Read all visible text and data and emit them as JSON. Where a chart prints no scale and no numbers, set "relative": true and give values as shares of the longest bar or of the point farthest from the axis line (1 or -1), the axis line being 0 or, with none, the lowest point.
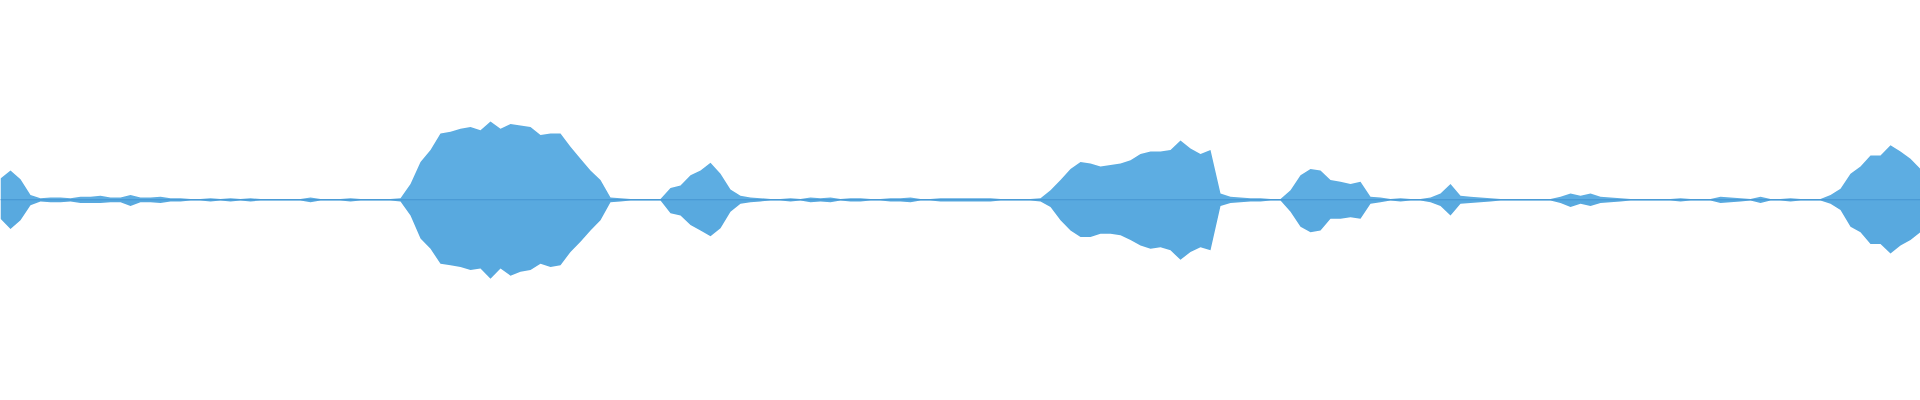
{
  "chart_data": {
    "type": "area",
    "relative": true,
    "tick_labels": false,
    "ref_lines": [
      {
        "axis": "y",
        "value": 0,
        "color": "#4b9bd5"
      }
    ],
    "categories": [
      null,
      null,
      null,
      null,
      null,
      null,
      null,
      null,
      null,
      null,
      null,
      null,
      null,
      null,
      null,
      null,
      null,
      null,
      null,
      null,
      null,
      null,
      null,
      null,
      null,
      null,
      null,
      null,
      null,
      null,
      null,
      null,
      null,
      null,
      null,
      null,
      null,
      null,
      null,
      null,
      null,
      null,
      null,
      null,
      null,
      null,
      null,
      null,
      null,
      null,
      null,
      null,
      null,
      null,
      null,
      null,
      null,
      null,
      null,
      null,
      null,
      null,
      null,
      null,
      null,
      null,
      null,
      null,
      null,
      null,
      null,
      null,
      null,
      null,
      null,
      null,
      null,
      null,
      null,
      null,
      null,
      null,
      null,
      null,
      null,
      null,
      null,
      null,
      null,
      null,
      null,
      null,
      null,
      null,
      null,
      null,
      null,
      null,
      null,
      null,
      null,
      null,
      null,
      null,
      null,
      null,
      null,
      null,
      null,
      null,
      null,
      null,
      null,
      null,
      null,
      null,
      null,
      null,
      null,
      null,
      null,
      null,
      null,
      null,
      null,
      null,
      null,
      null,
      null,
      null,
      null,
      null,
      null,
      null,
      null,
      null,
      null,
      null,
      null,
      null,
      null,
      null,
      null,
      null,
      null,
      null,
      null,
      null,
      null,
      null,
      null,
      null,
      null,
      null,
      null,
      null,
      null,
      null,
      null,
      null,
      null,
      null,
      null,
      null,
      null,
      null,
      null,
      null,
      null,
      null,
      null,
      null,
      null,
      null,
      null,
      null,
      null,
      null,
      null,
      null,
      null,
      null,
      null,
      null,
      null,
      null,
      null,
      null,
      null,
      null,
      null,
      null,
      null
    ],
    "series": [
      {
        "color": "#5dade2",
        "values": [
          0.27,
          0.37,
          0.26,
          0.06,
          0.02,
          0.03,
          0.03,
          0.02,
          0.04,
          0.04,
          0.05,
          0.03,
          0.03,
          0.06,
          0.03,
          0.03,
          0.04,
          0.02,
          0.02,
          0.01,
          0.01,
          0.02,
          0.01,
          0.02,
          0.01,
          0.02,
          0.01,
          0.01,
          0.01,
          0.01,
          0.01,
          0.03,
          0.01,
          0.01,
          0.01,
          0.02,
          0.01,
          0.01,
          0.01,
          0.01,
          0.02,
          0.2,
          0.48,
          0.63,
          0.84,
          0.86,
          0.9,
          0.92,
          0.88,
          0.99,
          0.9,
          0.96,
          0.94,
          0.92,
          0.82,
          0.84,
          0.84,
          0.67,
          0.52,
          0.37,
          0.25,
          0.03,
          0.02,
          0.01,
          0.01,
          0.01,
          0.01,
          0.15,
          0.18,
          0.31,
          0.37,
          0.47,
          0.33,
          0.13,
          0.05,
          0.03,
          0.02,
          0.01,
          0.01,
          0.02,
          0.01,
          0.03,
          0.02,
          0.03,
          0.01,
          0.02,
          0.02,
          0.01,
          0.01,
          0.02,
          0.02,
          0.03,
          0.01,
          0.01,
          0.02,
          0.02,
          0.02,
          0.02,
          0.02,
          0.02,
          0.01,
          0.01,
          0.01,
          0.01,
          0.02,
          0.12,
          0.25,
          0.39,
          0.48,
          0.46,
          0.42,
          0.44,
          0.46,
          0.5,
          0.58,
          0.61,
          0.61,
          0.63,
          0.75,
          0.65,
          0.58,
          0.63,
          0.08,
          0.04,
          0.03,
          0.02,
          0.02,
          0.01,
          0.01,
          0.12,
          0.31,
          0.39,
          0.37,
          0.25,
          0.23,
          0.2,
          0.23,
          0.04,
          0.03,
          0.01,
          0.02,
          0.01,
          0.01,
          0.03,
          0.08,
          0.2,
          0.05,
          0.04,
          0.03,
          0.02,
          0.01,
          0.01,
          0.01,
          0.01,
          0.01,
          0.01,
          0.04,
          0.08,
          0.05,
          0.08,
          0.04,
          0.03,
          0.02,
          0.01,
          0.01,
          0.01,
          0.01,
          0.01,
          0.02,
          0.01,
          0.01,
          0.01,
          0.04,
          0.03,
          0.02,
          0.01,
          0.04,
          0.01,
          0.01,
          0.02,
          0.01,
          0.01,
          0.01,
          0.06,
          0.14,
          0.33,
          0.42,
          0.56,
          0.56,
          0.69,
          0.61,
          0.52,
          0.39
        ]
      },
      {
        "color": "#58a9df",
        "values": [
          -0.24,
          -0.37,
          -0.26,
          -0.07,
          -0.02,
          -0.03,
          -0.03,
          -0.02,
          -0.04,
          -0.04,
          -0.04,
          -0.03,
          -0.03,
          -0.08,
          -0.03,
          -0.03,
          -0.04,
          -0.02,
          -0.02,
          -0.01,
          -0.01,
          -0.02,
          -0.01,
          -0.02,
          -0.01,
          -0.02,
          -0.01,
          -0.01,
          -0.01,
          -0.01,
          -0.01,
          -0.03,
          -0.01,
          -0.01,
          -0.01,
          -0.02,
          -0.01,
          -0.01,
          -0.01,
          -0.01,
          -0.02,
          -0.2,
          -0.49,
          -0.62,
          -0.81,
          -0.83,
          -0.85,
          -0.89,
          -0.87,
          -1.0,
          -0.87,
          -0.96,
          -0.91,
          -0.89,
          -0.81,
          -0.85,
          -0.83,
          -0.66,
          -0.53,
          -0.39,
          -0.26,
          -0.03,
          -0.02,
          -0.01,
          -0.01,
          -0.01,
          -0.01,
          -0.17,
          -0.2,
          -0.32,
          -0.39,
          -0.46,
          -0.36,
          -0.15,
          -0.05,
          -0.03,
          -0.02,
          -0.01,
          -0.01,
          -0.02,
          -0.01,
          -0.03,
          -0.02,
          -0.03,
          -0.01,
          -0.02,
          -0.02,
          -0.01,
          -0.01,
          -0.02,
          -0.02,
          -0.03,
          -0.01,
          -0.01,
          -0.02,
          -0.02,
          -0.02,
          -0.02,
          -0.02,
          -0.02,
          -0.01,
          -0.01,
          -0.01,
          -0.01,
          -0.02,
          -0.09,
          -0.26,
          -0.39,
          -0.47,
          -0.47,
          -0.43,
          -0.43,
          -0.45,
          -0.51,
          -0.58,
          -0.62,
          -0.6,
          -0.64,
          -0.76,
          -0.66,
          -0.6,
          -0.64,
          -0.08,
          -0.04,
          -0.03,
          -0.02,
          -0.02,
          -0.01,
          -0.01,
          -0.15,
          -0.34,
          -0.41,
          -0.39,
          -0.24,
          -0.24,
          -0.22,
          -0.24,
          -0.05,
          -0.03,
          -0.01,
          -0.02,
          -0.01,
          -0.01,
          -0.03,
          -0.08,
          -0.2,
          -0.05,
          -0.04,
          -0.03,
          -0.02,
          -0.01,
          -0.01,
          -0.01,
          -0.01,
          -0.01,
          -0.01,
          -0.04,
          -0.09,
          -0.05,
          -0.08,
          -0.04,
          -0.03,
          -0.02,
          -0.01,
          -0.01,
          -0.01,
          -0.01,
          -0.01,
          -0.02,
          -0.01,
          -0.01,
          -0.01,
          -0.04,
          -0.03,
          -0.02,
          -0.01,
          -0.04,
          -0.01,
          -0.01,
          -0.02,
          -0.01,
          -0.01,
          -0.01,
          -0.05,
          -0.13,
          -0.34,
          -0.41,
          -0.56,
          -0.56,
          -0.68,
          -0.58,
          -0.51,
          -0.41
        ]
      }
    ]
  }
}
